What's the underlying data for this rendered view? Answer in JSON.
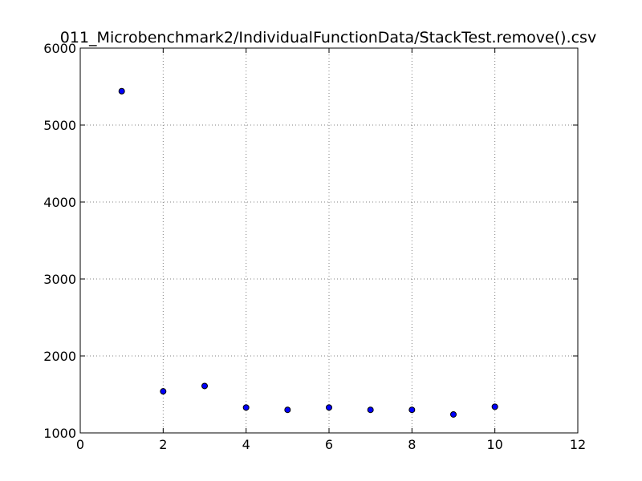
{
  "chart_data": {
    "type": "scatter",
    "title": "011_Microbenchmark2/IndividualFunctionData/StackTest.remove().csv",
    "xlabel": "",
    "ylabel": "",
    "xlim": [
      0,
      12
    ],
    "ylim": [
      1000,
      6000
    ],
    "x_ticks": [
      "0",
      "2",
      "4",
      "6",
      "8",
      "10",
      "12"
    ],
    "y_ticks": [
      "1000",
      "2000",
      "3000",
      "4000",
      "5000",
      "6000"
    ],
    "grid": true,
    "legend": "none",
    "series": [
      {
        "x": [
          1,
          2,
          3,
          4,
          5,
          6,
          7,
          8,
          9,
          10
        ],
        "y": [
          5440,
          1540,
          1610,
          1330,
          1300,
          1330,
          1300,
          1300,
          1240,
          1340
        ]
      }
    ],
    "colors": {
      "marker_fill": "#0000ff",
      "marker_edge": "#000000",
      "grid": "#808080",
      "axes": "#000000"
    }
  }
}
